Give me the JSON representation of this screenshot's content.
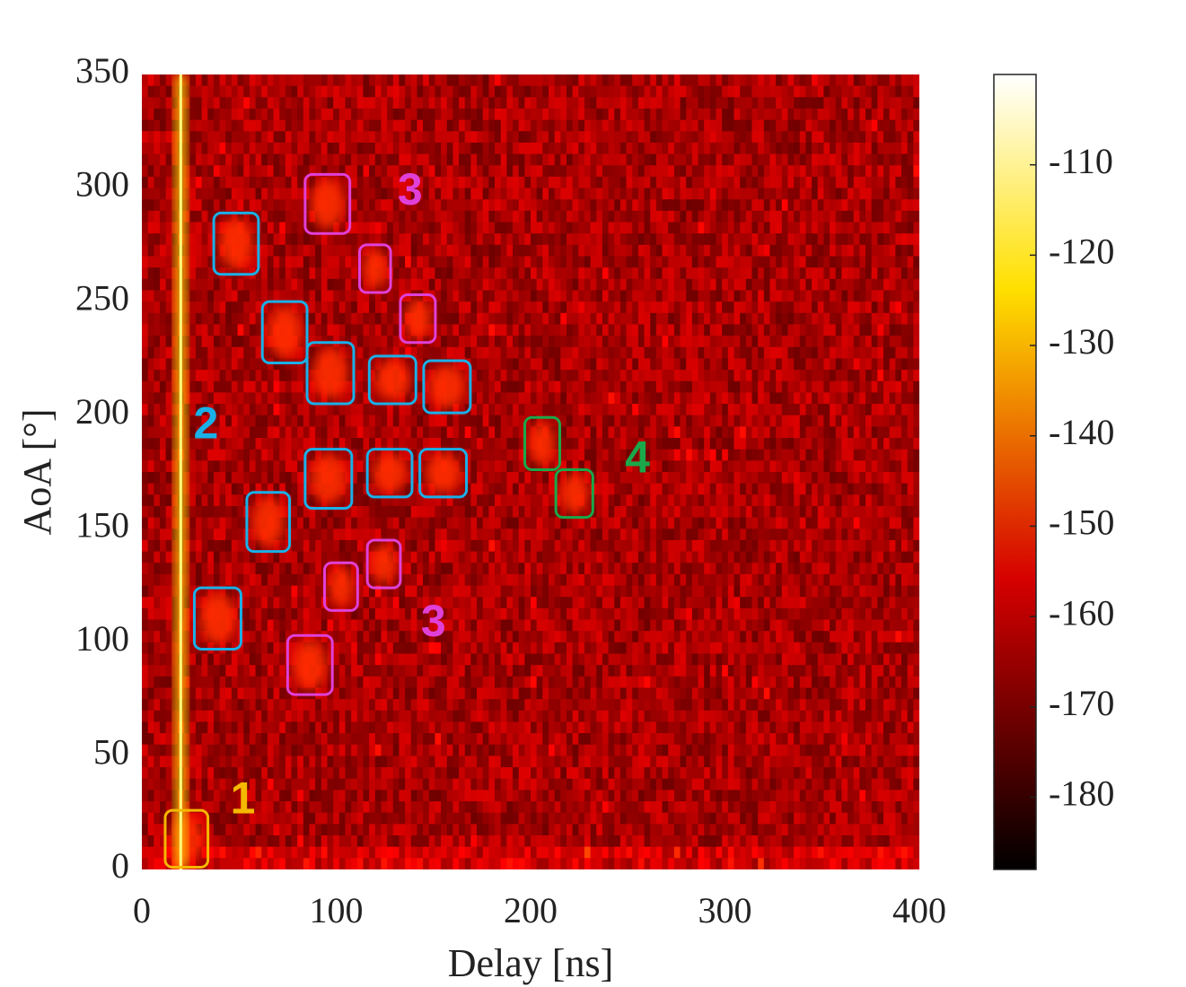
{
  "chart_data": {
    "type": "heatmap",
    "title": "",
    "xlabel": "Delay [ns]",
    "ylabel": "AoA [°]",
    "xlim": [
      0,
      400
    ],
    "ylim": [
      0,
      350
    ],
    "x_ticks": [
      "0",
      "100",
      "200",
      "300",
      "400"
    ],
    "y_ticks": [
      "0",
      "50",
      "100",
      "150",
      "200",
      "250",
      "300",
      "350"
    ],
    "colorbar": {
      "range": [
        -188,
        -100
      ],
      "ticks": [
        "-110",
        "-120",
        "-130",
        "-140",
        "-150",
        "-160",
        "-170",
        "-180"
      ],
      "colormap": "hot"
    },
    "background_level_dB": -165,
    "los_path": {
      "delay_ns": 20,
      "power_dB": -112
    },
    "clusters": [
      {
        "id": "1",
        "color": "#f5b800",
        "label_position": {
          "delay": 52,
          "aoa": 30
        },
        "regions": [
          {
            "delay": [
              12,
              34
            ],
            "aoa": [
              1,
              26
            ]
          }
        ]
      },
      {
        "id": "2",
        "color": "#1ab0e8",
        "label_position": {
          "delay": 33,
          "aoa": 195
        },
        "regions": [
          {
            "delay": [
              37,
              60
            ],
            "aoa": [
              262,
              289
            ]
          },
          {
            "delay": [
              62,
              85
            ],
            "aoa": [
              223,
              250
            ]
          },
          {
            "delay": [
              85,
              109
            ],
            "aoa": [
              205,
              232
            ]
          },
          {
            "delay": [
              117,
              141
            ],
            "aoa": [
              205,
              226
            ]
          },
          {
            "delay": [
              145,
              169
            ],
            "aoa": [
              201,
              224
            ]
          },
          {
            "delay": [
              84,
              108
            ],
            "aoa": [
              159,
              185
            ]
          },
          {
            "delay": [
              116,
              139
            ],
            "aoa": [
              164,
              185
            ]
          },
          {
            "delay": [
              143,
              167
            ],
            "aoa": [
              164,
              185
            ]
          },
          {
            "delay": [
              54,
              76
            ],
            "aoa": [
              140,
              166
            ]
          },
          {
            "delay": [
              27,
              51
            ],
            "aoa": [
              97,
              124
            ]
          }
        ]
      },
      {
        "id": "3",
        "color": "#e040d8",
        "label_position": {
          "delay": 138,
          "aoa": 298
        },
        "regions": [
          {
            "delay": [
              84,
              107
            ],
            "aoa": [
              280,
              306
            ]
          },
          {
            "delay": [
              112,
              128
            ],
            "aoa": [
              254,
              275
            ]
          },
          {
            "delay": [
              133,
              151
            ],
            "aoa": [
              232,
              253
            ]
          },
          {
            "delay": [
              116,
              133
            ],
            "aoa": [
              124,
              145
            ]
          },
          {
            "delay": [
              94,
              111
            ],
            "aoa": [
              114,
              135
            ]
          },
          {
            "delay": [
              75,
              98
            ],
            "aoa": [
              77,
              103
            ]
          }
        ]
      },
      {
        "id": "3",
        "color": "#e040d8",
        "label_position": {
          "delay": 150,
          "aoa": 108
        },
        "regions": []
      },
      {
        "id": "4",
        "color": "#1aa84a",
        "label_position": {
          "delay": 255,
          "aoa": 180
        },
        "regions": [
          {
            "delay": [
              197,
              215
            ],
            "aoa": [
              176,
              199
            ]
          },
          {
            "delay": [
              213,
              232
            ],
            "aoa": [
              155,
              176
            ]
          }
        ]
      }
    ]
  }
}
